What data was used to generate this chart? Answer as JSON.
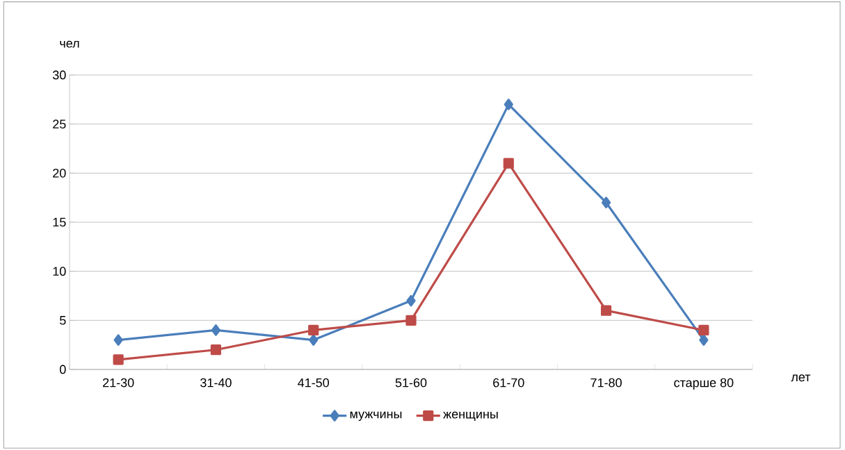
{
  "chart_data": {
    "type": "line",
    "xlabel": "лет",
    "ylabel": "чел",
    "categories": [
      "21-30",
      "31-40",
      "41-50",
      "51-60",
      "61-70",
      "71-80",
      "старше 80"
    ],
    "series": [
      {
        "name": "мужчины",
        "color": "#4a7ebb",
        "marker": "diamond",
        "values": [
          3,
          4,
          3,
          7,
          27,
          17,
          3
        ]
      },
      {
        "name": "женщины",
        "color": "#be4b48",
        "marker": "square",
        "values": [
          1,
          2,
          4,
          5,
          21,
          6,
          4
        ]
      }
    ],
    "ylim": [
      0,
      30
    ],
    "yticks": [
      0,
      5,
      10,
      15,
      20,
      25,
      30
    ],
    "grid": "y",
    "legend": "bottom",
    "line_style": "solid"
  }
}
